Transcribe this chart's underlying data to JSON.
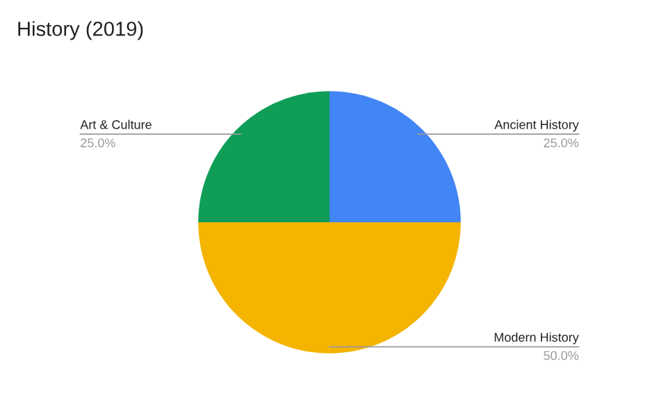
{
  "chart_data": {
    "type": "pie",
    "title": "History (2019)",
    "categories": [
      "Ancient History",
      "Modern History",
      "Art & Culture"
    ],
    "values": [
      25,
      50,
      25
    ],
    "colors": [
      "#4285f4",
      "#f4b400",
      "#0f9d58"
    ],
    "value_labels": [
      "25.0%",
      "50.0%",
      "25.0%"
    ],
    "legend": false
  }
}
